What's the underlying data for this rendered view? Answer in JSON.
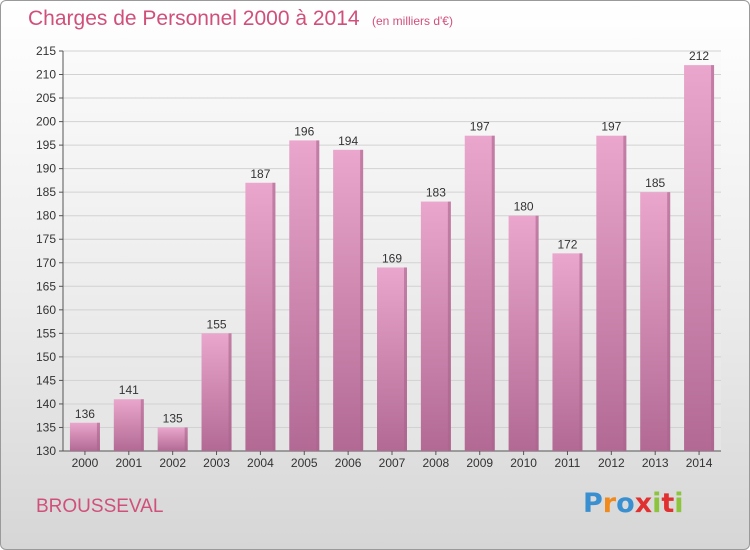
{
  "title": "Charges de Personnel 2000 à 2014",
  "subtitle": "(en milliers d'€)",
  "place": "BROUSSEVAL",
  "logo": {
    "letters": [
      "P",
      "r",
      "o",
      "x",
      "i",
      "t",
      "i"
    ],
    "colors": [
      "#3a8fd0",
      "#f08a1c",
      "#3a8fd0",
      "#e03030",
      "#8cc43c",
      "#e03030",
      "#8cc43c"
    ]
  },
  "colors": {
    "title": "#d0507a",
    "bar_top": "#eaa6cc",
    "bar_bottom": "#b26a94",
    "bar_side": "#a9648c"
  },
  "chart_data": {
    "type": "bar",
    "title": "Charges de Personnel 2000 à 2014",
    "subtitle": "(en milliers d'€)",
    "categories": [
      "2000",
      "2001",
      "2002",
      "2003",
      "2004",
      "2005",
      "2006",
      "2007",
      "2008",
      "2009",
      "2010",
      "2011",
      "2012",
      "2013",
      "2014"
    ],
    "values": [
      136,
      141,
      135,
      155,
      187,
      196,
      194,
      169,
      183,
      197,
      180,
      172,
      197,
      185,
      212
    ],
    "ylim": [
      130,
      215
    ],
    "yticks": [
      130,
      135,
      140,
      145,
      150,
      155,
      160,
      165,
      170,
      175,
      180,
      185,
      190,
      195,
      200,
      205,
      210,
      215
    ],
    "xlabel": "",
    "ylabel": "",
    "grid": true
  }
}
